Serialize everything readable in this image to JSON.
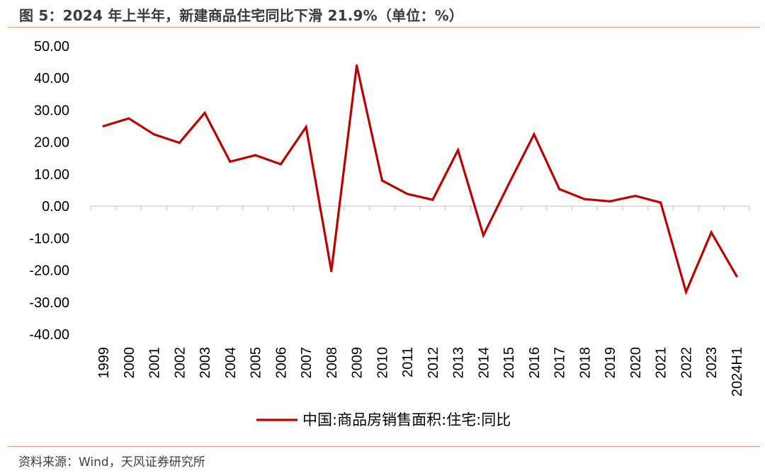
{
  "figure": {
    "title": "图 5：2024 年上半年，新建商品住宅同比下滑 21.9%（单位：%）",
    "source": "资料来源：Wind，天风证券研究所"
  },
  "chart_data": {
    "type": "line",
    "title": "",
    "xlabel": "",
    "ylabel": "",
    "categories": [
      "1999",
      "2000",
      "2001",
      "2002",
      "2003",
      "2004",
      "2005",
      "2006",
      "2007",
      "2008",
      "2009",
      "2010",
      "2011",
      "2012",
      "2013",
      "2014",
      "2015",
      "2016",
      "2017",
      "2018",
      "2019",
      "2020",
      "2021",
      "2022",
      "2023",
      "2024H1"
    ],
    "series": [
      {
        "name": "中国:商品房销售面积:住宅:同比",
        "color": "#c00000",
        "values": [
          25.0,
          27.4,
          22.4,
          19.8,
          29.1,
          13.9,
          15.9,
          13.1,
          24.7,
          -20.3,
          43.9,
          8.0,
          3.8,
          2.0,
          17.5,
          -9.1,
          6.9,
          22.4,
          5.3,
          2.2,
          1.5,
          3.2,
          1.1,
          -26.8,
          -8.2,
          -21.9
        ]
      }
    ],
    "ylim": [
      -40,
      50
    ],
    "y_ticks": [
      "50.00",
      "40.00",
      "30.00",
      "20.00",
      "10.00",
      "0.00",
      "-10.00",
      "-20.00",
      "-30.00",
      "-40.00"
    ],
    "grid": false,
    "legend_position": "bottom"
  }
}
